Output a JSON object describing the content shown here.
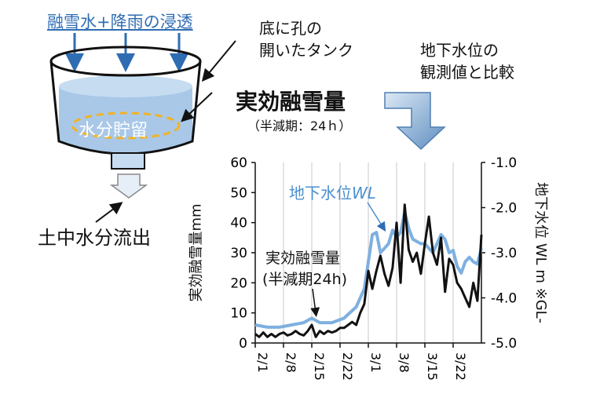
{
  "diagram": {
    "inflow_label": "融雪水+降雨の浸透",
    "tank_label_line1": "底に孔の",
    "tank_label_line2": "開いたタンク",
    "storage_label": "水分貯留",
    "outflow_label": "土中水分流出",
    "effective_title": "実効融雪量",
    "effective_subtitle": "（半減期：24ｈ）",
    "compare_line1": "地下水位の",
    "compare_line2": "観測値と比較",
    "colors": {
      "water": "#a9c8e8",
      "blue_text": "#2f6db3",
      "dash_ring": "#f0b323",
      "wl_line": "#7eb0e0"
    }
  },
  "chart_data": {
    "type": "line",
    "x": [
      "2/1",
      "2/8",
      "2/15",
      "2/22",
      "3/1",
      "3/8",
      "3/15",
      "3/22"
    ],
    "y_left_label": "実効融雪量mm",
    "y_left_ticks": [
      "60",
      "50",
      "40",
      "30",
      "20",
      "10",
      "0"
    ],
    "y_left_range": [
      0,
      60
    ],
    "y_right_label": "地下水位 WL m ※GL-",
    "y_right_ticks": [
      "-1.0",
      "-2.0",
      "-3.0",
      "-4.0",
      "-5.0"
    ],
    "y_right_range": [
      -5.0,
      -1.0
    ],
    "grid": "vertical",
    "series": [
      {
        "name": "地下水位WL",
        "label_parts": [
          "地下水位",
          "WL"
        ],
        "axis": "right",
        "color": "#7eb0e0",
        "points": [
          [
            0,
            -4.6
          ],
          [
            3,
            -4.65
          ],
          [
            6,
            -4.65
          ],
          [
            9,
            -4.6
          ],
          [
            12,
            -4.55
          ],
          [
            14,
            -4.45
          ],
          [
            16,
            -4.55
          ],
          [
            19,
            -4.55
          ],
          [
            22,
            -4.45
          ],
          [
            25,
            -4.2
          ],
          [
            27,
            -3.8
          ],
          [
            28,
            -3.2
          ],
          [
            29,
            -2.6
          ],
          [
            30,
            -2.55
          ],
          [
            31,
            -3.0
          ],
          [
            32,
            -2.9
          ],
          [
            33,
            -2.8
          ],
          [
            34,
            -2.5
          ],
          [
            35,
            -2.65
          ],
          [
            36,
            -2.55
          ],
          [
            37,
            -2.1
          ],
          [
            38,
            -2.45
          ],
          [
            39,
            -2.7
          ],
          [
            40,
            -2.75
          ],
          [
            41,
            -2.8
          ],
          [
            42,
            -2.8
          ],
          [
            43,
            -2.9
          ],
          [
            44,
            -3.0
          ],
          [
            45,
            -2.8
          ],
          [
            46,
            -2.6
          ],
          [
            47,
            -2.7
          ],
          [
            48,
            -3.0
          ],
          [
            49,
            -2.95
          ],
          [
            50,
            -3.3
          ],
          [
            51,
            -3.45
          ],
          [
            52,
            -3.2
          ],
          [
            53,
            -3.1
          ],
          [
            54,
            -3.2
          ],
          [
            55,
            -3.25
          ],
          [
            56,
            -2.9
          ]
        ]
      },
      {
        "name": "実効融雪量",
        "label_parts": [
          "実効融雪量",
          "(半減期24h)"
        ],
        "axis": "left",
        "color": "#111111",
        "points": [
          [
            0,
            3
          ],
          [
            1,
            2
          ],
          [
            2,
            3.5
          ],
          [
            3,
            2
          ],
          [
            4,
            3
          ],
          [
            5,
            2
          ],
          [
            6,
            3
          ],
          [
            7,
            3.5
          ],
          [
            8,
            2.5
          ],
          [
            9,
            3
          ],
          [
            10,
            4
          ],
          [
            11,
            3
          ],
          [
            12,
            2.5
          ],
          [
            13,
            4
          ],
          [
            14,
            6
          ],
          [
            15,
            2
          ],
          [
            16,
            4
          ],
          [
            17,
            3
          ],
          [
            18,
            4
          ],
          [
            19,
            3.5
          ],
          [
            20,
            4
          ],
          [
            21,
            5
          ],
          [
            22,
            5
          ],
          [
            23,
            6
          ],
          [
            24,
            7
          ],
          [
            25,
            6
          ],
          [
            26,
            10
          ],
          [
            27,
            13
          ],
          [
            28,
            24
          ],
          [
            29,
            18
          ],
          [
            30,
            24
          ],
          [
            31,
            29
          ],
          [
            32,
            23
          ],
          [
            33,
            19
          ],
          [
            34,
            25
          ],
          [
            35,
            40
          ],
          [
            36,
            20
          ],
          [
            37,
            46
          ],
          [
            38,
            31
          ],
          [
            39,
            27
          ],
          [
            40,
            30
          ],
          [
            41,
            23
          ],
          [
            42,
            33
          ],
          [
            43,
            42
          ],
          [
            44,
            30
          ],
          [
            45,
            26
          ],
          [
            46,
            35
          ],
          [
            47,
            17
          ],
          [
            48,
            28
          ],
          [
            49,
            26
          ],
          [
            50,
            20
          ],
          [
            51,
            18
          ],
          [
            52,
            15
          ],
          [
            53,
            12
          ],
          [
            54,
            20
          ],
          [
            55,
            14
          ],
          [
            56,
            36
          ]
        ]
      }
    ]
  }
}
